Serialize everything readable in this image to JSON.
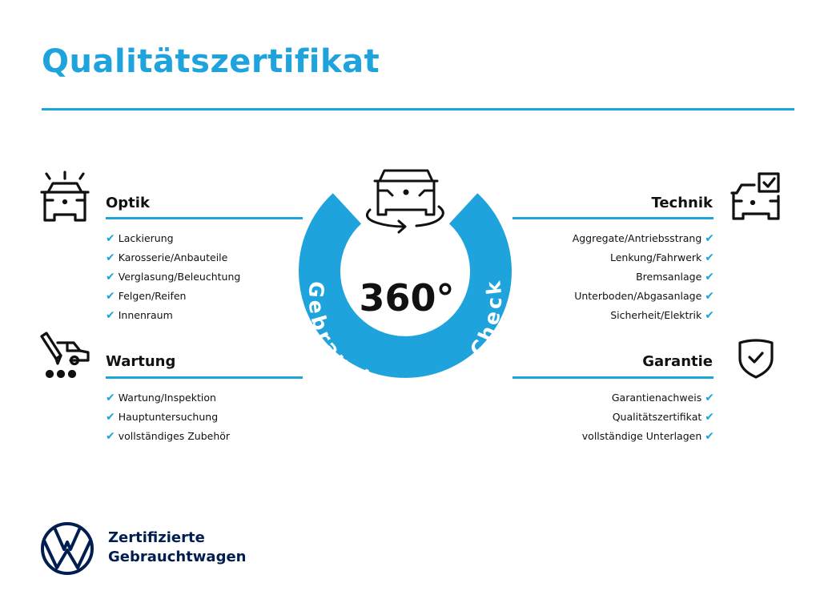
{
  "title": "Qualitätszertifikat",
  "colors": {
    "accent": "#1ea3dc",
    "brand": "#001e50",
    "text": "#111111"
  },
  "center": {
    "degrees": "360°",
    "ring_text": "Gebrauchtwagen-Check",
    "icon": "car-rotate-icon"
  },
  "sections": {
    "optik": {
      "heading": "Optik",
      "icon": "car-lights-icon",
      "items": [
        "Lackierung",
        "Karosserie/Anbauteile",
        "Verglasung/Beleuchtung",
        "Felgen/Reifen",
        "Innenraum"
      ]
    },
    "wartung": {
      "heading": "Wartung",
      "icon": "service-car-icon",
      "items": [
        "Wartung/Inspektion",
        "Hauptuntersuchung",
        "vollständiges Zubehör"
      ]
    },
    "technik": {
      "heading": "Technik",
      "icon": "car-checkbox-icon",
      "items": [
        "Aggregate/Antriebsstrang",
        "Lenkung/Fahrwerk",
        "Bremsanlage",
        "Unterboden/Abgasanlage",
        "Sicherheit/Elektrik"
      ]
    },
    "garantie": {
      "heading": "Garantie",
      "icon": "shield-check-icon",
      "items": [
        "Garantienachweis",
        "Qualitätszertifikat",
        "vollständige Unterlagen"
      ]
    }
  },
  "check_glyph": "✔",
  "brand": {
    "line1": "Zertifizierte",
    "line2": "Gebrauchtwagen",
    "logo": "vw-logo"
  }
}
